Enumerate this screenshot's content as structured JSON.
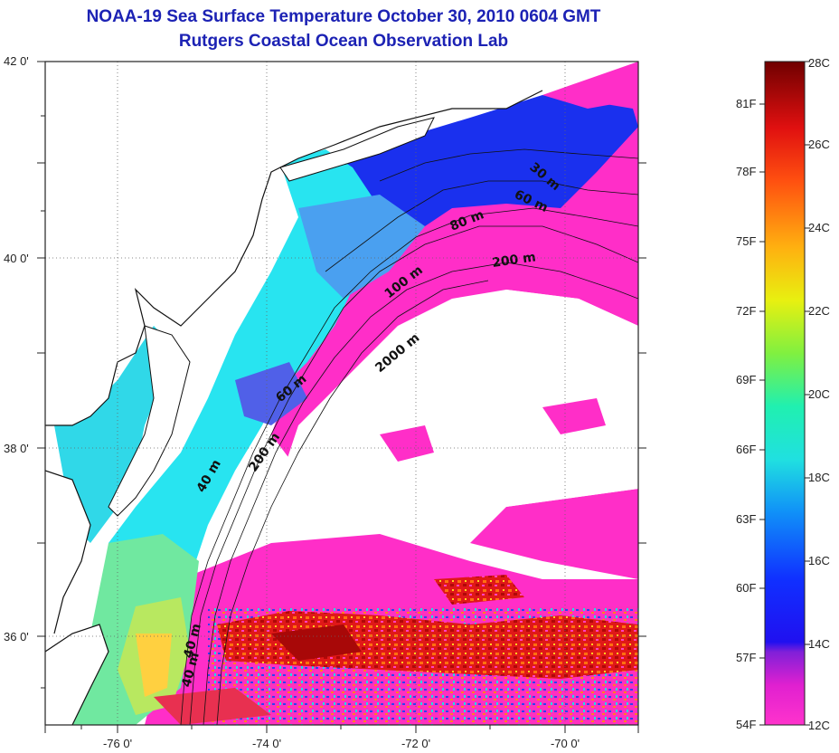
{
  "title": {
    "line1": "NOAA-19 Sea Surface Temperature October 30, 2010 0604 GMT",
    "line2": "Rutgers Coastal Ocean Observation Lab"
  },
  "axes": {
    "lon_ticks": [
      "-76 0'",
      "-74 0'",
      "-72 0'",
      "-70 0'"
    ],
    "lat_ticks": [
      "42 0'",
      "40 0'",
      "38 0'",
      "36 0'"
    ]
  },
  "contours": [
    "30 m",
    "60 m",
    "80 m",
    "200 m",
    "100 m",
    "2000 m",
    "60 m",
    "200 m",
    "40 m",
    "40 m",
    "40 m"
  ],
  "colorbar": {
    "fahrenheit": [
      "81F",
      "78F",
      "75F",
      "72F",
      "69F",
      "66F",
      "63F",
      "60F",
      "57F",
      "54F"
    ],
    "celsius": [
      "28C",
      "26C",
      "24C",
      "22C",
      "20C",
      "18C",
      "16C",
      "14C",
      "12C"
    ]
  },
  "colors": {
    "title": "#1c22b4",
    "land": "#ffffff",
    "water_cyan": "#22e8f0",
    "water_blue": "#2040ee",
    "magenta": "#ff28c8",
    "warm_red": "#d01010"
  }
}
